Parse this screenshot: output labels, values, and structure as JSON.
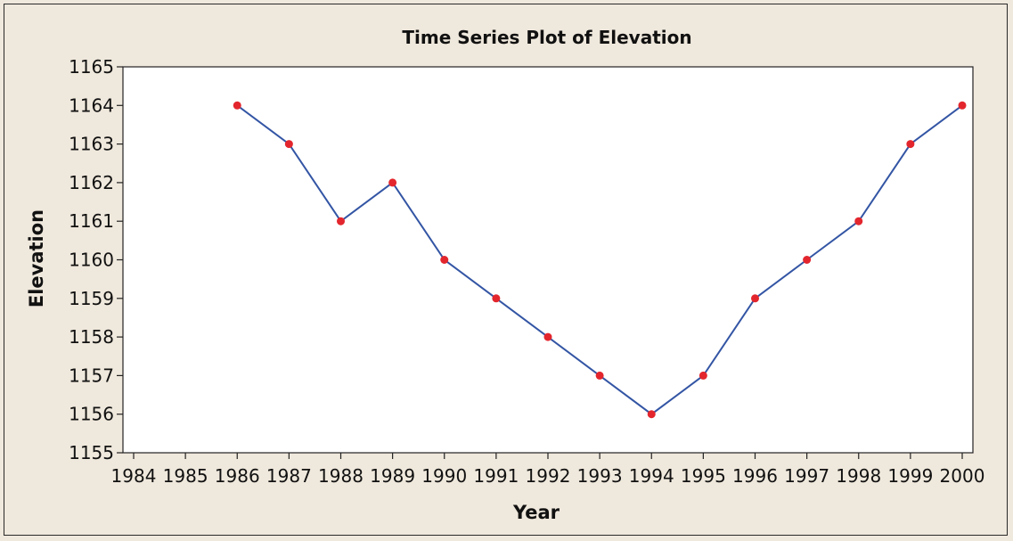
{
  "chart_data": {
    "type": "line",
    "title": "Time Series Plot of Elevation",
    "xlabel": "Year",
    "ylabel": "Elevation",
    "xlim": [
      1984,
      2000
    ],
    "ylim": [
      1155,
      1165
    ],
    "x_ticks": [
      1984,
      1985,
      1986,
      1987,
      1988,
      1989,
      1990,
      1991,
      1992,
      1993,
      1994,
      1995,
      1996,
      1997,
      1998,
      1999,
      2000
    ],
    "y_ticks": [
      1155,
      1156,
      1157,
      1158,
      1159,
      1160,
      1161,
      1162,
      1163,
      1164,
      1165
    ],
    "grid": false,
    "series": [
      {
        "x": [
          1986,
          1987,
          1988,
          1989,
          1990,
          1991,
          1992,
          1993,
          1994,
          1995,
          1996,
          1997,
          1998,
          1999,
          2000
        ],
        "y": [
          1164,
          1163,
          1161,
          1162,
          1160,
          1159,
          1158,
          1157,
          1156,
          1157,
          1159,
          1160,
          1161,
          1163,
          1164
        ],
        "line_color": "#3355a4",
        "marker_color": "#e3262d"
      }
    ]
  }
}
